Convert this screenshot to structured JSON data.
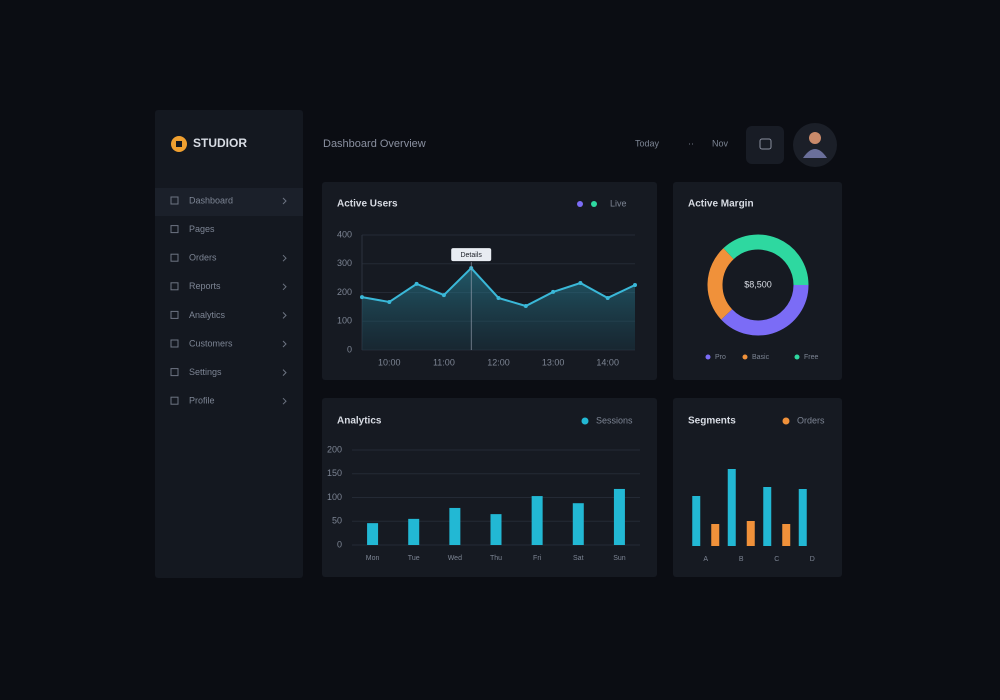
{
  "header": {
    "logo": "STUDIOR",
    "title": "Dashboard Overview",
    "links": [
      "Today",
      "··",
      "Nov"
    ]
  },
  "sidebar": {
    "items": [
      "Dashboard",
      "Pages",
      "Orders",
      "Reports",
      "Analytics",
      "Customers",
      "Settings",
      "Profile"
    ]
  },
  "chart_data": [
    {
      "type": "line",
      "title": "Active Users",
      "color": "#3ab8d8",
      "categories": [
        null,
        "10:00",
        null,
        "11:00",
        null,
        "12:00",
        null,
        "13:00",
        null,
        "14:00",
        null
      ],
      "values": [
        184,
        167,
        230,
        191,
        285,
        181,
        153,
        202,
        233,
        181,
        226
      ],
      "ylim": [
        0,
        400
      ],
      "yticks": [
        0,
        100,
        200,
        300,
        400
      ],
      "grid": true,
      "annotation": "Details",
      "legend_colors": [
        "#7b6cf6",
        "#2ed8a0"
      ],
      "legend_text": "Live"
    },
    {
      "type": "donut",
      "title": "Active Margin",
      "center_text": "$8,500",
      "categories": [
        "Pro",
        "Basic",
        "Free"
      ],
      "values": [
        38,
        25,
        37
      ],
      "colors": [
        "#7b6cf6",
        "#f0913a",
        "#2ed8a0"
      ]
    },
    {
      "type": "bar",
      "title": "Analytics",
      "categories": [
        "Mon",
        "Tue",
        "Wed",
        "Thu",
        "Fri",
        "Sat",
        "Sun"
      ],
      "series": [
        {
          "name": "Sessions",
          "color": "#22b8d4",
          "values": [
            46,
            55,
            78,
            65,
            103,
            88,
            118
          ]
        }
      ],
      "ylim": [
        0,
        200
      ],
      "yticks": [
        0,
        50,
        100,
        150,
        200
      ],
      "grid": true
    },
    {
      "type": "bar",
      "title": "Segments",
      "categories": [
        "A",
        "B",
        "C",
        "D"
      ],
      "series": [
        {
          "color": "#22b8d4",
          "values": [
            50,
            77,
            59,
            57
          ]
        },
        {
          "name": "Orders",
          "color": "#f0913a",
          "values": [
            22,
            25,
            22,
            null
          ]
        }
      ],
      "ylim": [
        0,
        100
      ],
      "grid": false
    }
  ]
}
